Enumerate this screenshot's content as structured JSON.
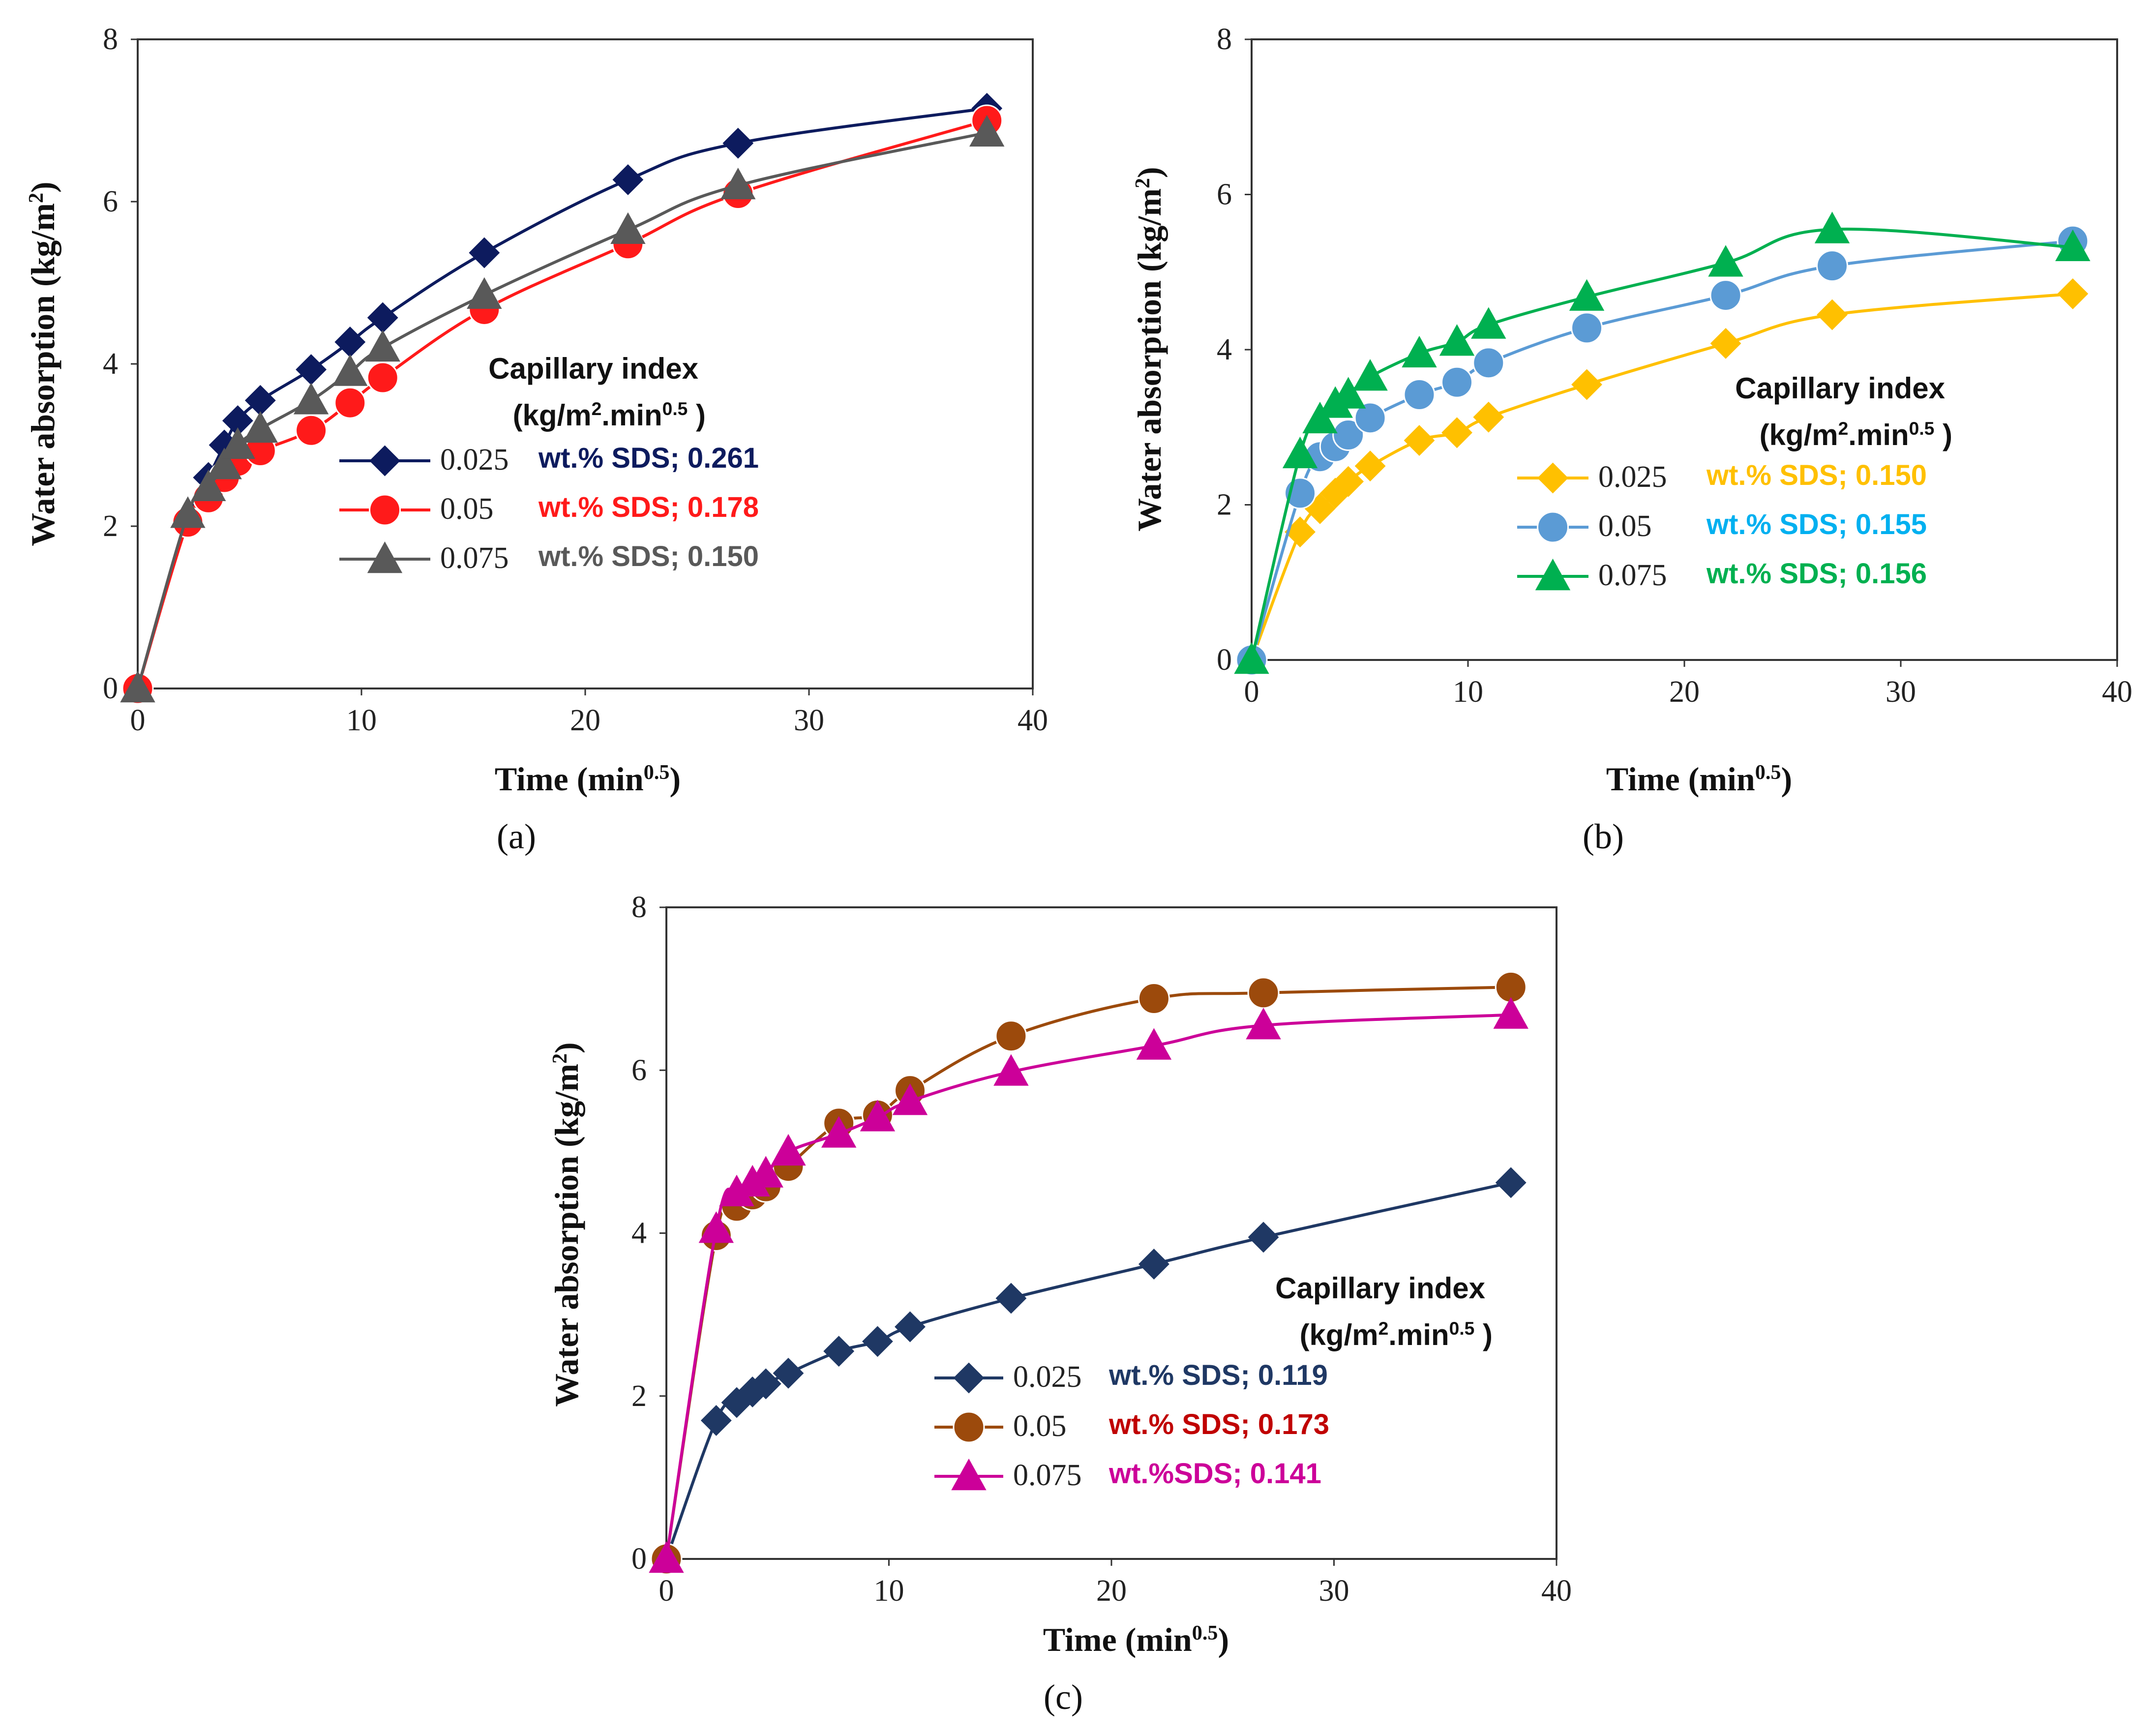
{
  "chart_data": [
    {
      "type": "line",
      "panel_label": "(a)",
      "xlabel_main": "Time (min",
      "xlabel_sup": "0.5",
      "xlabel_end": ")",
      "ylabel_main": "Water absorption (kg/m",
      "ylabel_sup": "2",
      "ylabel_end": ")",
      "xlim": [
        0,
        40
      ],
      "ylim": [
        0,
        8
      ],
      "xticks": [
        "0",
        "10",
        "20",
        "30",
        "40"
      ],
      "yticks": [
        "0",
        "2",
        "4",
        "6",
        "8"
      ],
      "legend": {
        "position": "center-right",
        "header_line1": "Capillary index",
        "header_line2_main": "(kg/m",
        "header_line2_sup1": "2",
        "header_line2_mid": ".min",
        "header_line2_sup2": "0.5",
        "header_line2_end": " )"
      },
      "series": [
        {
          "name": "0.025",
          "index_label": "wt.% SDS; 0.261",
          "marker": "diamond",
          "color": "#0d1b5e",
          "index_color": "#0d1b5e",
          "x": [
            0,
            2.24,
            3.16,
            3.87,
            4.47,
            5.48,
            7.75,
            9.49,
            10.95,
            15.49,
            21.91,
            26.83,
            37.95
          ],
          "y": [
            0,
            2.1,
            2.6,
            3.0,
            3.3,
            3.55,
            3.93,
            4.27,
            4.57,
            5.37,
            6.27,
            6.72,
            7.15
          ]
        },
        {
          "name": "0.05",
          "index_label": "wt.% SDS; 0.178",
          "marker": "circle",
          "color": "#ff1a1a",
          "index_color": "#ff1a1a",
          "x": [
            0,
            2.24,
            3.16,
            3.87,
            4.47,
            5.48,
            7.75,
            9.49,
            10.95,
            15.49,
            21.91,
            26.83,
            37.95
          ],
          "y": [
            0,
            2.05,
            2.35,
            2.6,
            2.8,
            2.93,
            3.18,
            3.52,
            3.83,
            4.67,
            5.48,
            6.1,
            7.0
          ]
        },
        {
          "name": "0.075",
          "index_label": "wt.% SDS; 0.150",
          "marker": "triangle",
          "color": "#595959",
          "index_color": "#595959",
          "x": [
            0,
            2.24,
            3.16,
            3.87,
            4.47,
            5.48,
            7.75,
            9.49,
            10.95,
            15.49,
            21.91,
            26.83,
            37.95
          ],
          "y": [
            0,
            2.15,
            2.48,
            2.75,
            3.0,
            3.2,
            3.55,
            3.9,
            4.2,
            4.85,
            5.65,
            6.2,
            6.85
          ]
        }
      ]
    },
    {
      "type": "line",
      "panel_label": "(b)",
      "xlabel_main": "Time (min",
      "xlabel_sup": "0.5",
      "xlabel_end": ")",
      "ylabel_main": "Water absorption (kg/m",
      "ylabel_sup": "2",
      "ylabel_end": ")",
      "xlim": [
        0,
        40
      ],
      "ylim": [
        0,
        8
      ],
      "xticks": [
        "0",
        "10",
        "20",
        "30",
        "40"
      ],
      "yticks": [
        "0",
        "2",
        "4",
        "6",
        "8"
      ],
      "legend": {
        "position": "center-right",
        "header_line1": "Capillary index",
        "header_line2_main": "(kg/m",
        "header_line2_sup1": "2",
        "header_line2_mid": ".min",
        "header_line2_sup2": "0.5",
        "header_line2_end": " )"
      },
      "series": [
        {
          "name": "0.025",
          "index_label": "wt.% SDS; 0.150",
          "marker": "diamond",
          "color": "#ffc000",
          "index_color": "#ffc000",
          "x": [
            0,
            2.24,
            3.16,
            3.87,
            4.47,
            5.48,
            7.75,
            9.49,
            10.95,
            15.49,
            21.91,
            26.83,
            37.95
          ],
          "y": [
            0,
            1.65,
            1.95,
            2.15,
            2.3,
            2.5,
            2.83,
            2.93,
            3.13,
            3.55,
            4.08,
            4.45,
            4.72
          ]
        },
        {
          "name": "0.05",
          "index_label": "wt.% SDS; 0.155",
          "marker": "circle",
          "color": "#5b9bd5",
          "index_color": "#00b0f0",
          "x": [
            0,
            2.24,
            3.16,
            3.87,
            4.47,
            5.48,
            7.75,
            9.49,
            10.95,
            15.49,
            21.91,
            26.83,
            37.95
          ],
          "y": [
            0,
            2.15,
            2.62,
            2.75,
            2.9,
            3.12,
            3.42,
            3.58,
            3.83,
            4.28,
            4.7,
            5.08,
            5.4
          ]
        },
        {
          "name": "0.075",
          "index_label": "wt.% SDS; 0.156",
          "marker": "triangle",
          "color": "#00b050",
          "index_color": "#00b050",
          "x": [
            0,
            2.24,
            3.16,
            3.87,
            4.47,
            5.48,
            7.75,
            9.49,
            10.95,
            15.49,
            21.91,
            26.83,
            37.95
          ],
          "y": [
            0,
            2.65,
            3.1,
            3.3,
            3.42,
            3.65,
            3.95,
            4.1,
            4.32,
            4.68,
            5.12,
            5.55,
            5.32
          ]
        }
      ]
    },
    {
      "type": "line",
      "panel_label": "(c)",
      "xlabel_main": "Time (min",
      "xlabel_sup": "0.5",
      "xlabel_end": ")",
      "ylabel_main": "Water absorption (kg/m",
      "ylabel_sup": "2",
      "ylabel_end": ")",
      "xlim": [
        0,
        40
      ],
      "ylim": [
        0,
        8
      ],
      "xticks": [
        "0",
        "10",
        "20",
        "30",
        "40"
      ],
      "yticks": [
        "0",
        "2",
        "4",
        "6",
        "8"
      ],
      "legend": {
        "position": "center-right",
        "header_line1": "Capillary index",
        "header_line2_main": "(kg/m",
        "header_line2_sup1": "2",
        "header_line2_mid": ".min",
        "header_line2_sup2": "0.5",
        "header_line2_end": " )"
      },
      "series": [
        {
          "name": "0.025",
          "index_label": "wt.% SDS; 0.119",
          "marker": "diamond",
          "color": "#1f3864",
          "index_color": "#1f3864",
          "x": [
            0,
            2.24,
            3.16,
            3.87,
            4.47,
            5.48,
            7.75,
            9.49,
            10.95,
            15.49,
            21.91,
            26.83,
            37.95
          ],
          "y": [
            0,
            1.7,
            1.92,
            2.05,
            2.15,
            2.28,
            2.55,
            2.67,
            2.85,
            3.2,
            3.62,
            3.95,
            4.62
          ]
        },
        {
          "name": "0.05",
          "index_label": "wt.% SDS; 0.173",
          "marker": "circle",
          "color": "#9c4a0c",
          "index_color": "#c00000",
          "x": [
            0,
            2.24,
            3.16,
            3.87,
            4.47,
            5.48,
            7.75,
            9.49,
            10.95,
            15.49,
            21.91,
            26.83,
            37.95
          ],
          "y": [
            0,
            3.97,
            4.33,
            4.47,
            4.57,
            4.82,
            5.35,
            5.45,
            5.75,
            6.42,
            6.88,
            6.95,
            7.02
          ]
        },
        {
          "name": "0.075",
          "index_label": "wt.%SDS; 0.141",
          "marker": "triangle",
          "color": "#cc0099",
          "index_color": "#cc0099",
          "x": [
            0,
            2.24,
            3.16,
            3.87,
            4.47,
            5.48,
            7.75,
            9.49,
            10.95,
            15.49,
            21.91,
            26.83,
            37.95
          ],
          "y": [
            0,
            4.05,
            4.5,
            4.62,
            4.73,
            5.0,
            5.22,
            5.42,
            5.62,
            5.98,
            6.3,
            6.55,
            6.68
          ]
        }
      ]
    }
  ]
}
